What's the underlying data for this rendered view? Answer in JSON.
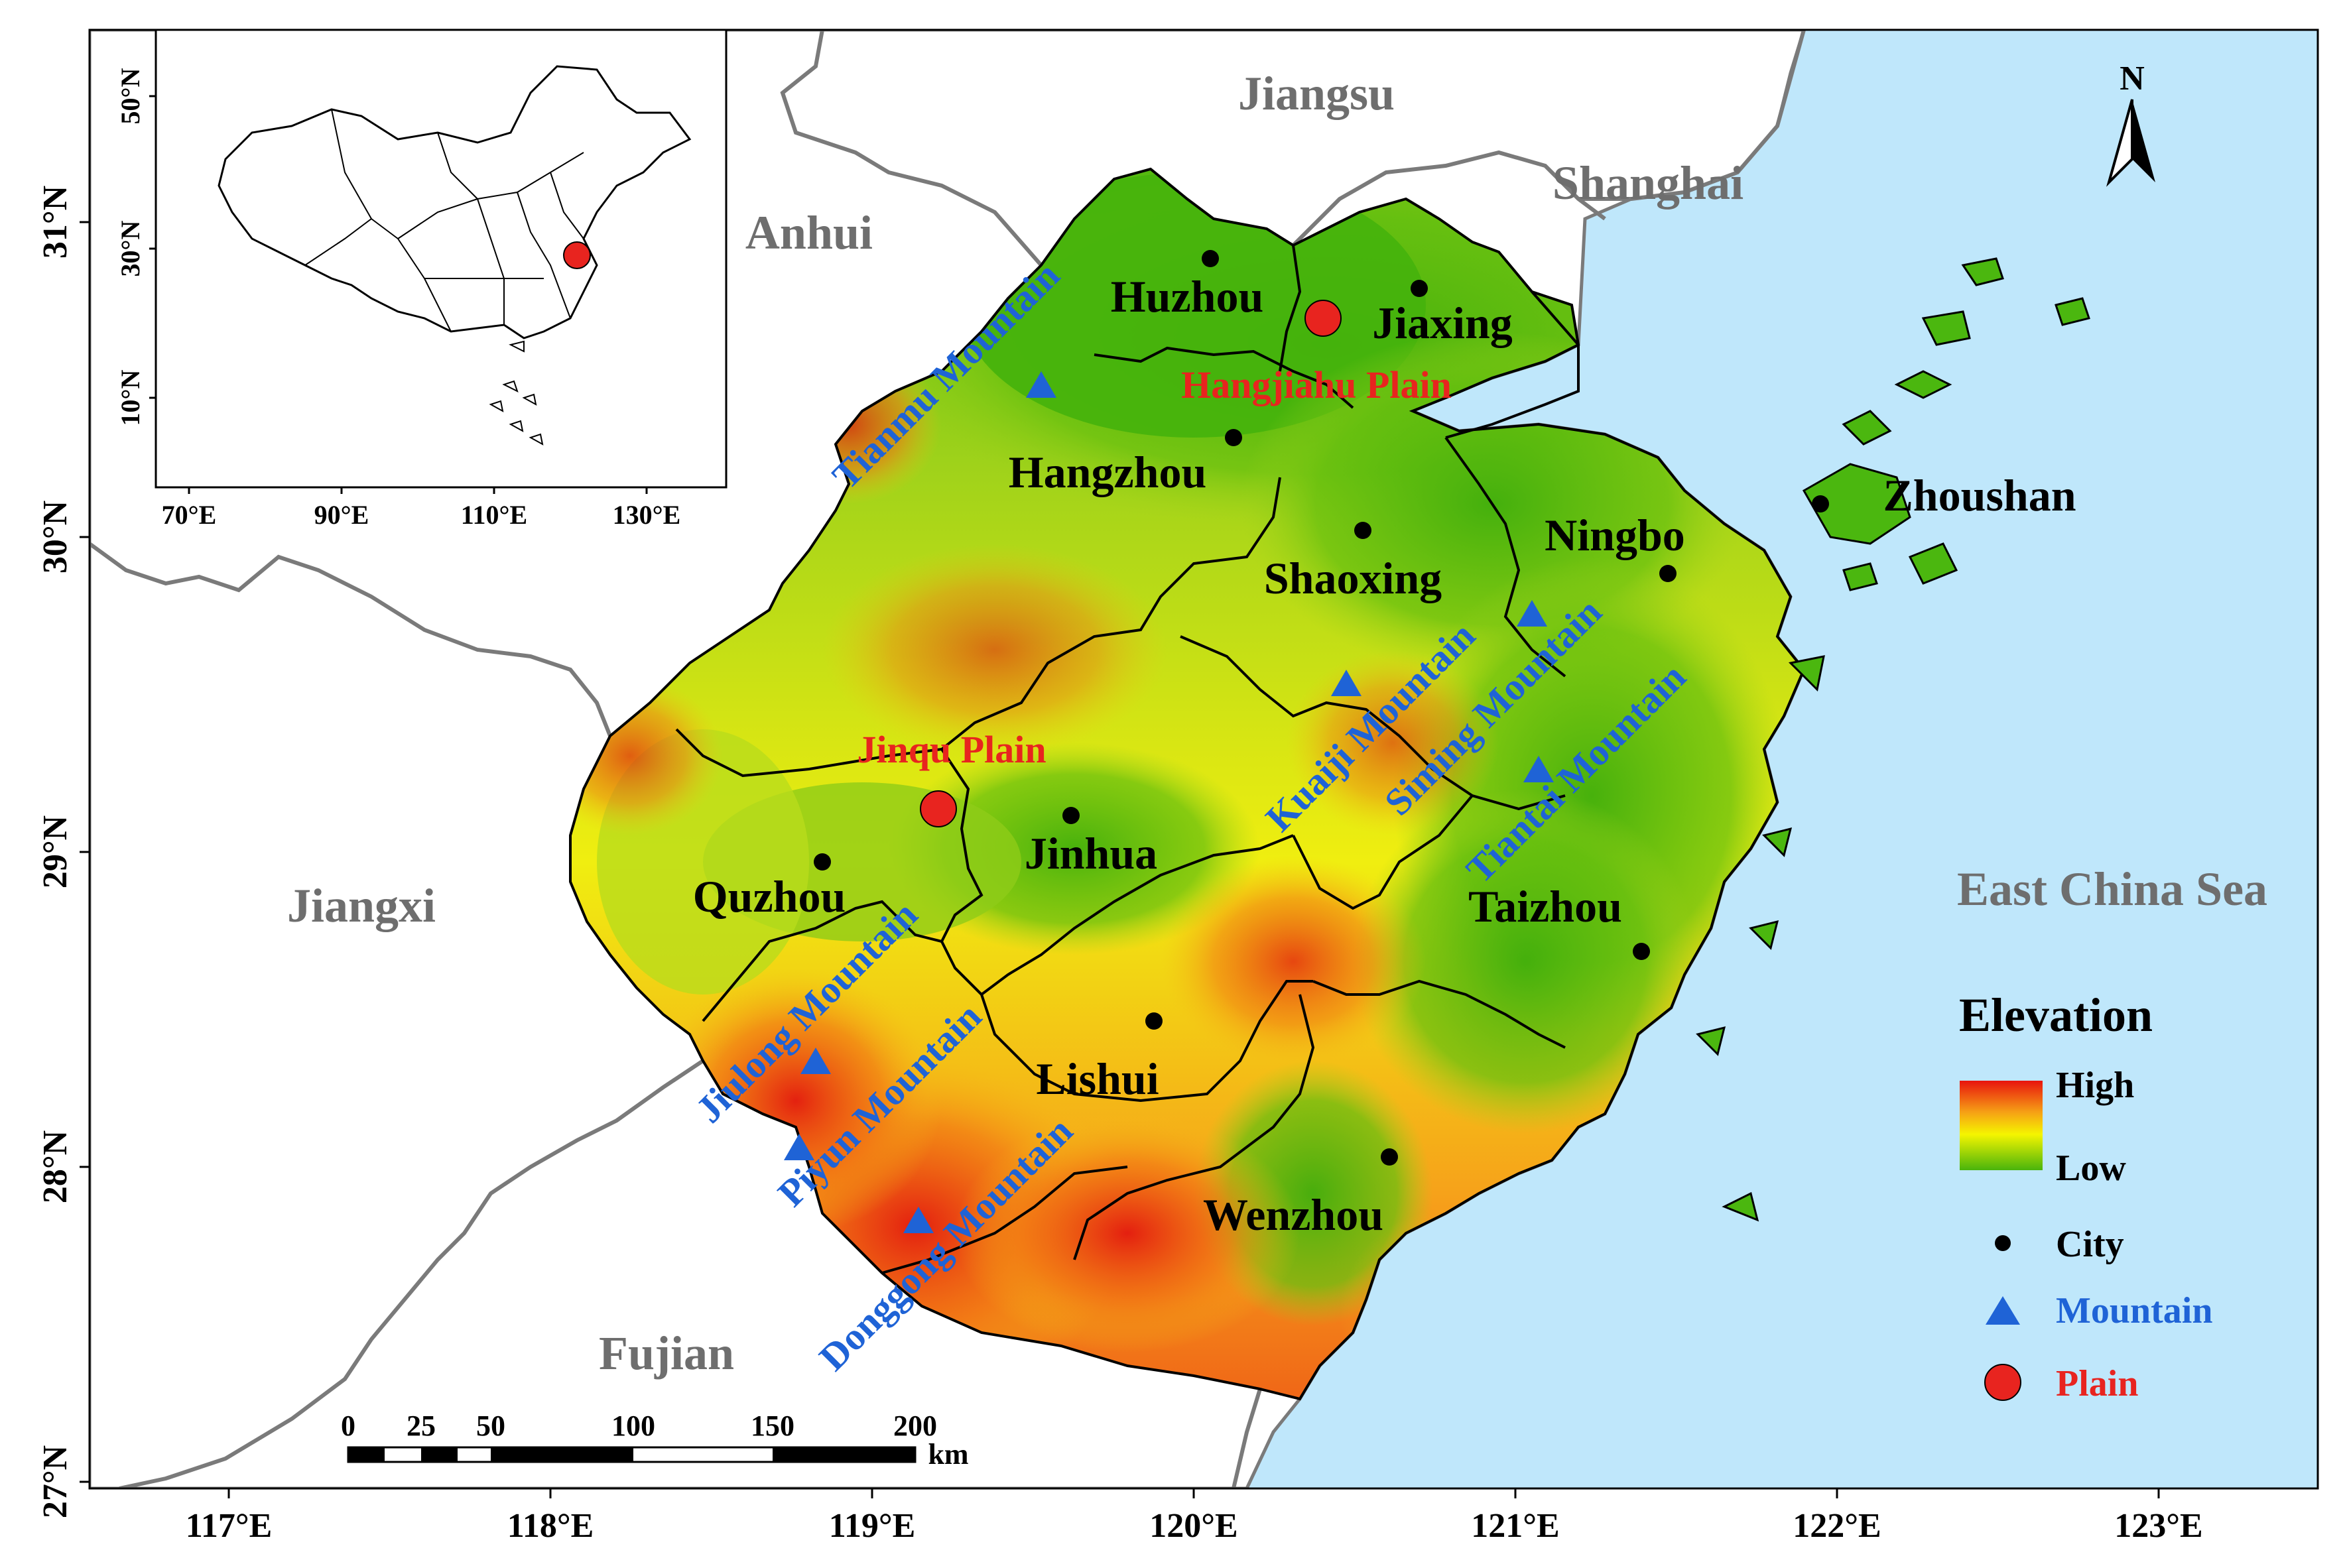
{
  "map": {
    "lat_ticks": [
      "31°N",
      "30°N",
      "29°N",
      "28°N",
      "27°N"
    ],
    "lon_ticks": [
      "117°E",
      "118°E",
      "119°E",
      "120°E",
      "121°E",
      "122°E",
      "123°E"
    ],
    "provinces": {
      "jiangsu": "Jiangsu",
      "shanghai": "Shanghai",
      "anhui": "Anhui",
      "jiangxi": "Jiangxi",
      "fujian": "Fujian",
      "sea": "East China Sea"
    },
    "cities": {
      "huzhou": "Huzhou",
      "jiaxing": "Jiaxing",
      "hangzhou": "Hangzhou",
      "shaoxing": "Shaoxing",
      "ningbo": "Ningbo",
      "zhoushan": "Zhoushan",
      "jinhua": "Jinhua",
      "quzhou": "Quzhou",
      "taizhou": "Taizhou",
      "lishui": "Lishui",
      "wenzhou": "Wenzhou"
    },
    "mountains": {
      "tianmu": "Tianmu Mountain",
      "kuaiji": "Kuaiji Mountain",
      "siming": "Siming Mountain",
      "tiantai": "Tiantai Mountain",
      "jiulong": "Jiulong Mountain",
      "piyun": "Piyun Mountain",
      "donggong": "Donggong Mountain"
    },
    "plains": {
      "hangjiahu": "Hangjiahu Plain",
      "jinqu": "Jinqu Plain"
    },
    "north_label": "N",
    "colors": {
      "sea": "#bfe7fb",
      "land_neighbor": "#ffffff",
      "elev_low": "#49b40c",
      "elev_mid": "#f5f500",
      "elev_high": "#e8140e",
      "mountain": "#1f63d6",
      "plain": "#e8241f"
    }
  },
  "inset": {
    "lat_ticks": [
      "50°N",
      "30°N",
      "10°N"
    ],
    "lon_ticks": [
      "70°E",
      "90°E",
      "110°E",
      "130°E"
    ]
  },
  "scale_bar": {
    "ticks": [
      "0",
      "25",
      "50",
      "100",
      "150",
      "200"
    ],
    "unit": "km"
  },
  "legend": {
    "title": "Elevation",
    "high": "High",
    "low": "Low",
    "city": "City",
    "mountain": "Mountain",
    "plain": "Plain"
  }
}
